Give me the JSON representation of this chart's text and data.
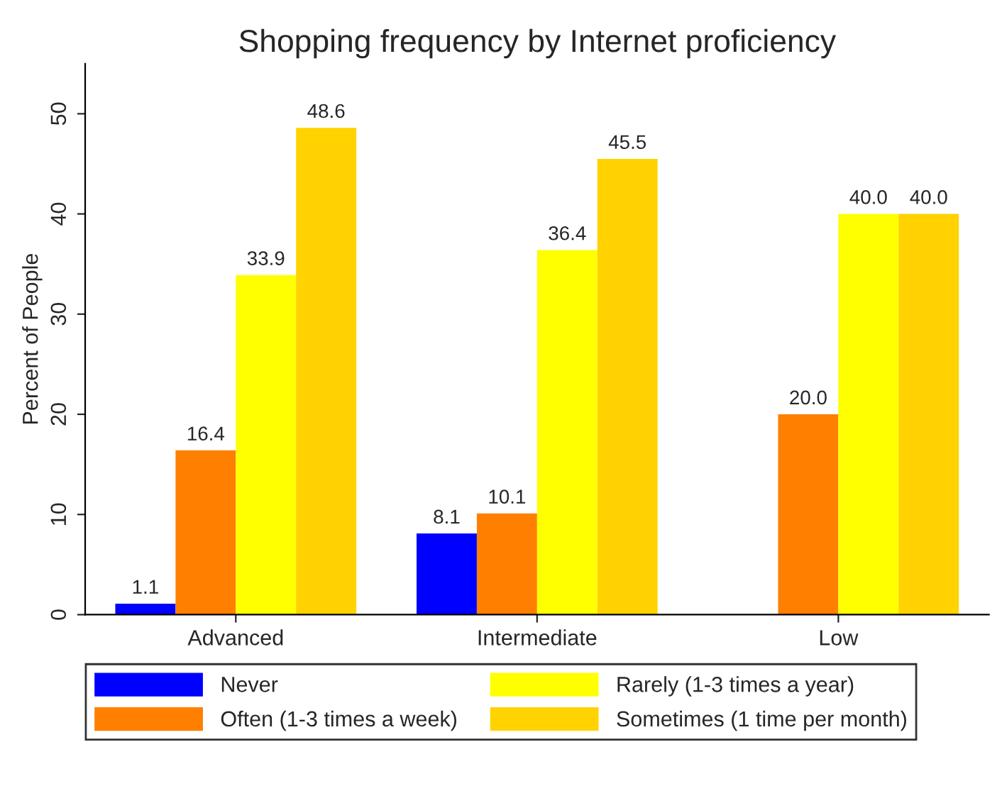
{
  "chart_data": {
    "type": "bar",
    "title": "Shopping frequency by Internet proficiency",
    "ylabel": "Percent of People",
    "categories": [
      "Advanced",
      "Intermediate",
      "Low"
    ],
    "series": [
      {
        "name": "Never",
        "color": "#0000ff",
        "values": [
          1.1,
          8.1,
          null
        ],
        "value_labels": [
          "1.1",
          "8.1",
          null
        ]
      },
      {
        "name": "Often (1-3 times a week)",
        "color": "#ff7f00",
        "values": [
          16.4,
          10.1,
          20.0
        ],
        "value_labels": [
          "16.4",
          "10.1",
          "20.0"
        ]
      },
      {
        "name": "Rarely (1-3 times a year)",
        "color": "#ffff00",
        "values": [
          33.9,
          36.4,
          40.0
        ],
        "value_labels": [
          "33.9",
          "36.4",
          "40.0"
        ]
      },
      {
        "name": "Sometimes (1 time per month)",
        "color": "#ffd200",
        "values": [
          48.6,
          45.5,
          40.0
        ],
        "value_labels": [
          "48.6",
          "45.5",
          "40.0"
        ]
      }
    ],
    "ylim": [
      0,
      55
    ],
    "yticks": [
      0,
      10,
      20,
      30,
      40,
      50
    ],
    "grid": false,
    "legend": "bottom"
  }
}
